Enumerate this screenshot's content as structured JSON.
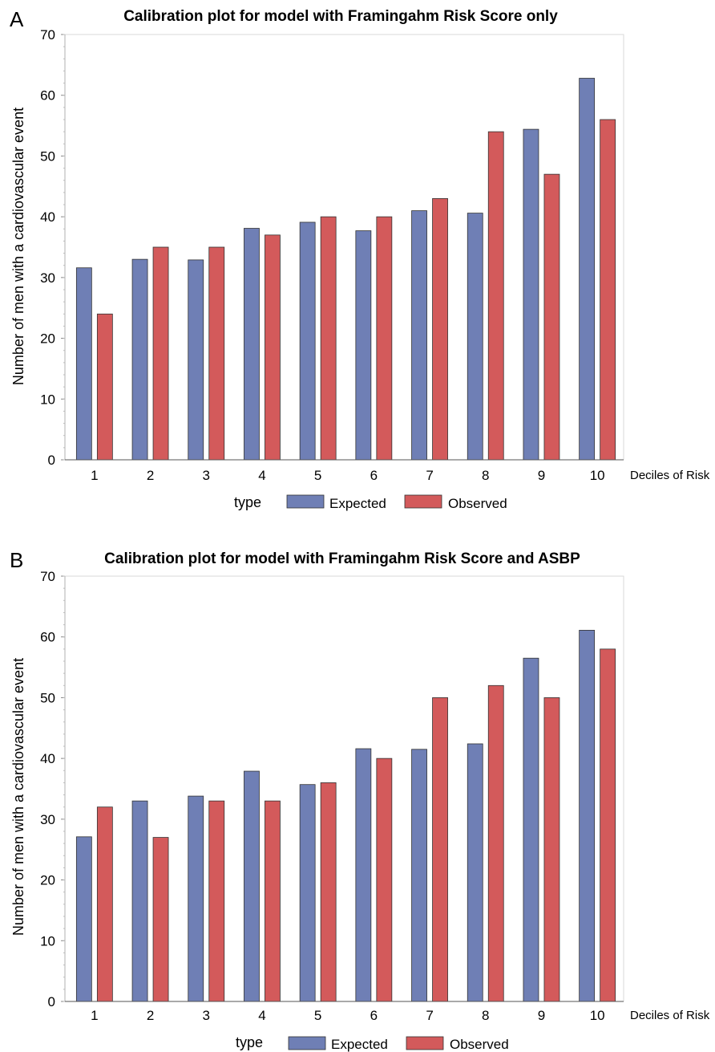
{
  "colors": {
    "expected": "#6f7fb5",
    "observed": "#d35a5b"
  },
  "chart_data": [
    {
      "type": "bar",
      "panel_label": "A",
      "title": "Calibration plot for model with Framingahm Risk Score only",
      "xlabel": "Deciles of Risk",
      "ylabel": "Number of men with a cardiovascular event",
      "ylim": [
        0,
        70
      ],
      "yticks": [
        "0",
        "10",
        "20",
        "30",
        "40",
        "50",
        "60",
        "70"
      ],
      "categories": [
        "1",
        "2",
        "3",
        "4",
        "5",
        "6",
        "7",
        "8",
        "9",
        "10"
      ],
      "legend_title": "type",
      "legend_position": "bottom",
      "series": [
        {
          "name": "Expected",
          "values": [
            31.6,
            33,
            32.9,
            38.1,
            39.1,
            37.7,
            41,
            40.6,
            54.4,
            62.8
          ]
        },
        {
          "name": "Observed",
          "values": [
            24,
            35,
            35,
            37,
            40,
            40,
            43,
            54,
            47,
            56
          ]
        }
      ]
    },
    {
      "type": "bar",
      "panel_label": "B",
      "title": "Calibration plot for model with Framingahm Risk Score and ASBP",
      "xlabel": "Deciles of Risk",
      "ylabel": "Number of men with a cardiovascular event",
      "ylim": [
        0,
        70
      ],
      "yticks": [
        "0",
        "10",
        "20",
        "30",
        "40",
        "50",
        "60",
        "70"
      ],
      "categories": [
        "1",
        "2",
        "3",
        "4",
        "5",
        "6",
        "7",
        "8",
        "9",
        "10"
      ],
      "legend_title": "type",
      "legend_position": "bottom",
      "series": [
        {
          "name": "Expected",
          "values": [
            27.1,
            33,
            33.8,
            37.9,
            35.7,
            41.6,
            41.5,
            42.4,
            56.5,
            61.1
          ]
        },
        {
          "name": "Observed",
          "values": [
            32,
            27,
            33,
            33,
            36,
            40,
            50,
            52,
            50,
            58
          ]
        }
      ]
    }
  ]
}
